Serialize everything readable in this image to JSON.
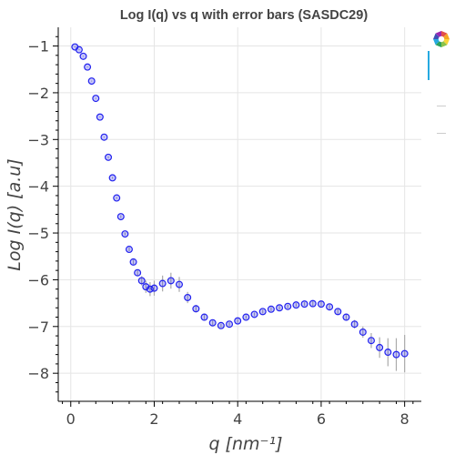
{
  "chart_data": {
    "type": "scatter",
    "title": "Log I(q) vs q with error bars (SASDC29)",
    "xlabel": "q [nm⁻¹]",
    "ylabel": "Log I(q) [a.u]",
    "xlim": [
      -0.3,
      8.4
    ],
    "ylim": [
      -8.6,
      -0.6
    ],
    "x_ticks": [
      0,
      2,
      4,
      6,
      8
    ],
    "x_tick_labels": [
      "0",
      "2",
      "4",
      "6",
      "8"
    ],
    "y_ticks": [
      -1,
      -2,
      -3,
      -4,
      -5,
      -6,
      -7,
      -8
    ],
    "y_tick_labels": [
      "−1",
      "−2",
      "−3",
      "−4",
      "−5",
      "−6",
      "−7",
      "−8"
    ],
    "grid": true,
    "series": [
      {
        "marker": "circle",
        "color": "#2222ee",
        "error_bar_color": "#aaaaaa",
        "x": [
          0.1,
          0.2,
          0.3,
          0.4,
          0.5,
          0.6,
          0.7,
          0.8,
          0.9,
          1.0,
          1.1,
          1.2,
          1.3,
          1.4,
          1.5,
          1.6,
          1.7,
          1.8,
          1.9,
          2.0,
          2.2,
          2.4,
          2.6,
          2.8,
          3.0,
          3.2,
          3.4,
          3.6,
          3.8,
          4.0,
          4.2,
          4.4,
          4.6,
          4.8,
          5.0,
          5.2,
          5.4,
          5.6,
          5.8,
          6.0,
          6.2,
          6.4,
          6.6,
          6.8,
          7.0,
          7.2,
          7.4,
          7.6,
          7.8,
          8.0
        ],
        "y": [
          -1.02,
          -1.08,
          -1.22,
          -1.45,
          -1.75,
          -2.12,
          -2.52,
          -2.95,
          -3.38,
          -3.82,
          -4.25,
          -4.65,
          -5.02,
          -5.35,
          -5.62,
          -5.85,
          -6.02,
          -6.15,
          -6.2,
          -6.18,
          -6.08,
          -6.02,
          -6.1,
          -6.38,
          -6.62,
          -6.8,
          -6.92,
          -6.98,
          -6.95,
          -6.88,
          -6.8,
          -6.74,
          -6.68,
          -6.63,
          -6.6,
          -6.57,
          -6.54,
          -6.52,
          -6.51,
          -6.52,
          -6.58,
          -6.68,
          -6.8,
          -6.95,
          -7.12,
          -7.3,
          -7.45,
          -7.55,
          -7.6,
          -7.58
        ],
        "error": [
          0.01,
          0.01,
          0.01,
          0.01,
          0.01,
          0.01,
          0.01,
          0.01,
          0.02,
          0.02,
          0.02,
          0.03,
          0.03,
          0.04,
          0.05,
          0.07,
          0.1,
          0.13,
          0.15,
          0.16,
          0.17,
          0.17,
          0.16,
          0.12,
          0.08,
          0.06,
          0.05,
          0.04,
          0.04,
          0.04,
          0.04,
          0.04,
          0.04,
          0.04,
          0.04,
          0.04,
          0.04,
          0.04,
          0.05,
          0.05,
          0.05,
          0.06,
          0.07,
          0.09,
          0.12,
          0.16,
          0.22,
          0.3,
          0.35,
          0.4
        ]
      }
    ]
  },
  "toolbar": {
    "icons": [
      "bokeh-logo-icon",
      "pan-tool-icon",
      "zoom-tool-icon",
      "reset-tool-icon"
    ],
    "accent_color": "#26aae1"
  }
}
